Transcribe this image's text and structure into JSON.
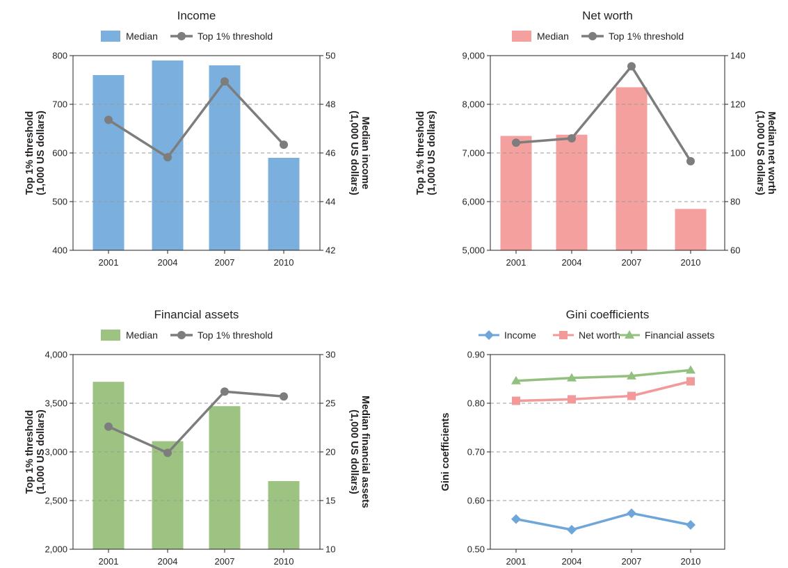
{
  "chart_data": [
    {
      "type": "bar",
      "title": "Income",
      "categories": [
        "2001",
        "2004",
        "2007",
        "2010"
      ],
      "series": [
        {
          "name": "Median",
          "type": "bar",
          "axis": "right",
          "color": "#7aafde",
          "values": [
            49.2,
            49.8,
            49.6,
            45.8
          ]
        },
        {
          "name": "Top 1% threshold",
          "type": "line",
          "axis": "left",
          "color": "#7d7d7d",
          "values": [
            668,
            591,
            747,
            617
          ]
        }
      ],
      "ylabel_left": "Top 1% threshold\n(1,000 US dollars)",
      "ylabel_right": "Median income\n(1,000 US dollars)",
      "ylim_left": [
        400,
        800
      ],
      "ylim_right": [
        42,
        50
      ],
      "yticks_left": [
        "400",
        "500",
        "600",
        "700",
        "800"
      ],
      "yticks_right": [
        "42",
        "44",
        "46",
        "48",
        "50"
      ],
      "grid": true,
      "legend_position": "top"
    },
    {
      "type": "bar",
      "title": "Net worth",
      "categories": [
        "2001",
        "2004",
        "2007",
        "2010"
      ],
      "series": [
        {
          "name": "Median",
          "type": "bar",
          "axis": "right",
          "color": "#f4a09f",
          "values": [
            107,
            107.5,
            127,
            77
          ]
        },
        {
          "name": "Top 1% threshold",
          "type": "line",
          "axis": "left",
          "color": "#7d7d7d",
          "values": [
            7210,
            7300,
            8780,
            6830
          ]
        }
      ],
      "ylabel_left": "Top 1% threshold\n(1,000 US dollars)",
      "ylabel_right": "Median net worth\n(1,000 US dollars)",
      "ylim_left": [
        5000,
        9000
      ],
      "ylim_right": [
        60,
        140
      ],
      "yticks_left": [
        "5,000",
        "6,000",
        "7,000",
        "8,000",
        "9,000"
      ],
      "yticks_right": [
        "60",
        "80",
        "100",
        "120",
        "140"
      ],
      "grid": true,
      "legend_position": "top"
    },
    {
      "type": "bar",
      "title": "Financial assets",
      "categories": [
        "2001",
        "2004",
        "2007",
        "2010"
      ],
      "series": [
        {
          "name": "Median",
          "type": "bar",
          "axis": "right",
          "color": "#9dc383",
          "values": [
            27.2,
            21.1,
            24.7,
            17
          ]
        },
        {
          "name": "Top 1% threshold",
          "type": "line",
          "axis": "left",
          "color": "#7d7d7d",
          "values": [
            3260,
            2990,
            3620,
            3570
          ]
        }
      ],
      "ylabel_left": "Top 1% threshold\n(1,000 US dollars)",
      "ylabel_right": "Median financial assets\n(1,000 US dollars)",
      "ylim_left": [
        2000,
        4000
      ],
      "ylim_right": [
        10,
        30
      ],
      "yticks_left": [
        "2,000",
        "2,500",
        "3,000",
        "3,500",
        "4,000"
      ],
      "yticks_right": [
        "10",
        "15",
        "20",
        "25",
        "30"
      ],
      "grid": true,
      "legend_position": "top"
    },
    {
      "type": "line",
      "title": "Gini coefficients",
      "categories": [
        "2001",
        "2004",
        "2007",
        "2010"
      ],
      "series": [
        {
          "name": "Income",
          "marker": "diamond",
          "color": "#6fa6d9",
          "values": [
            0.562,
            0.54,
            0.574,
            0.55
          ]
        },
        {
          "name": "Net worth",
          "marker": "square",
          "color": "#f19a99",
          "values": [
            0.805,
            0.808,
            0.815,
            0.845
          ]
        },
        {
          "name": "Financial assets",
          "marker": "triangle",
          "color": "#92c07e",
          "values": [
            0.846,
            0.852,
            0.856,
            0.868
          ]
        }
      ],
      "ylabel": "Gini coefficients",
      "ylim": [
        0.5,
        0.9
      ],
      "yticks": [
        "0.50",
        "0.60",
        "0.70",
        "0.80",
        "0.90"
      ],
      "grid": true,
      "legend_position": "top"
    }
  ]
}
